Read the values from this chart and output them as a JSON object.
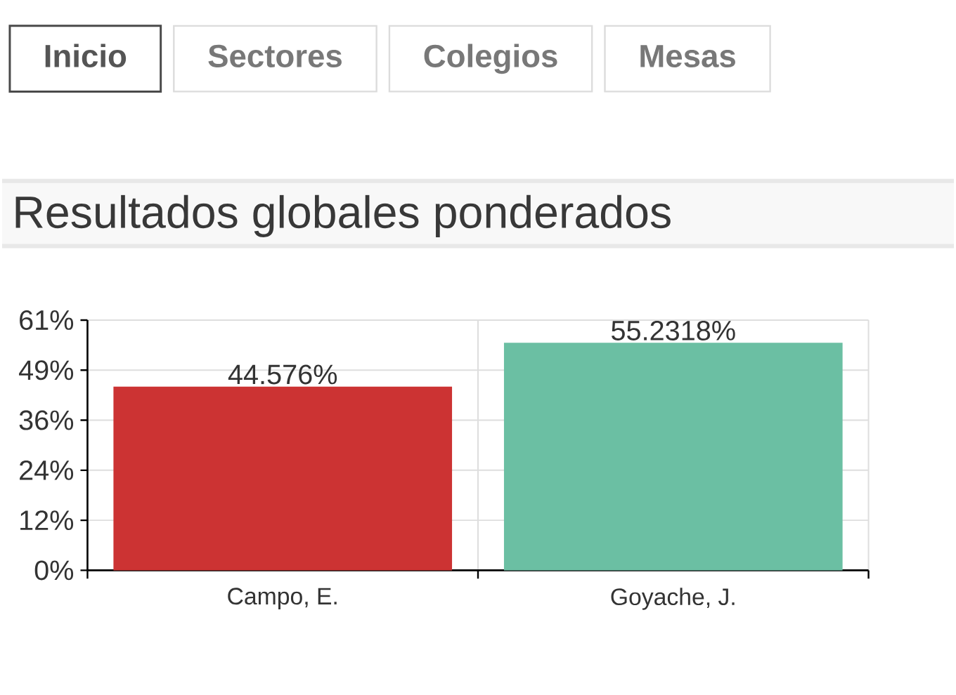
{
  "chart_data": {
    "type": "bar",
    "title": "Resultados globales ponderados",
    "annotations": [
      "Inicio",
      "Sectores",
      "Colegios",
      "Mesas"
    ],
    "categories": [
      "Campo, E.",
      "Goyache, J."
    ],
    "values": [
      44.576,
      55.2318
    ],
    "colors": [
      "#cc3333",
      "#6bbfa3"
    ],
    "value_labels": [
      "44.576%",
      "55.2318%"
    ],
    "ylim": [
      0,
      60.75
    ],
    "yticks": [
      {
        "value": 0,
        "label": "0%"
      },
      {
        "value": 12.15,
        "label": "12%"
      },
      {
        "value": 24.3,
        "label": "24%"
      },
      {
        "value": 36.45,
        "label": "36%"
      },
      {
        "value": 48.6,
        "label": "49%"
      },
      {
        "value": 60.75,
        "label": "61%"
      }
    ],
    "grid": true
  }
}
